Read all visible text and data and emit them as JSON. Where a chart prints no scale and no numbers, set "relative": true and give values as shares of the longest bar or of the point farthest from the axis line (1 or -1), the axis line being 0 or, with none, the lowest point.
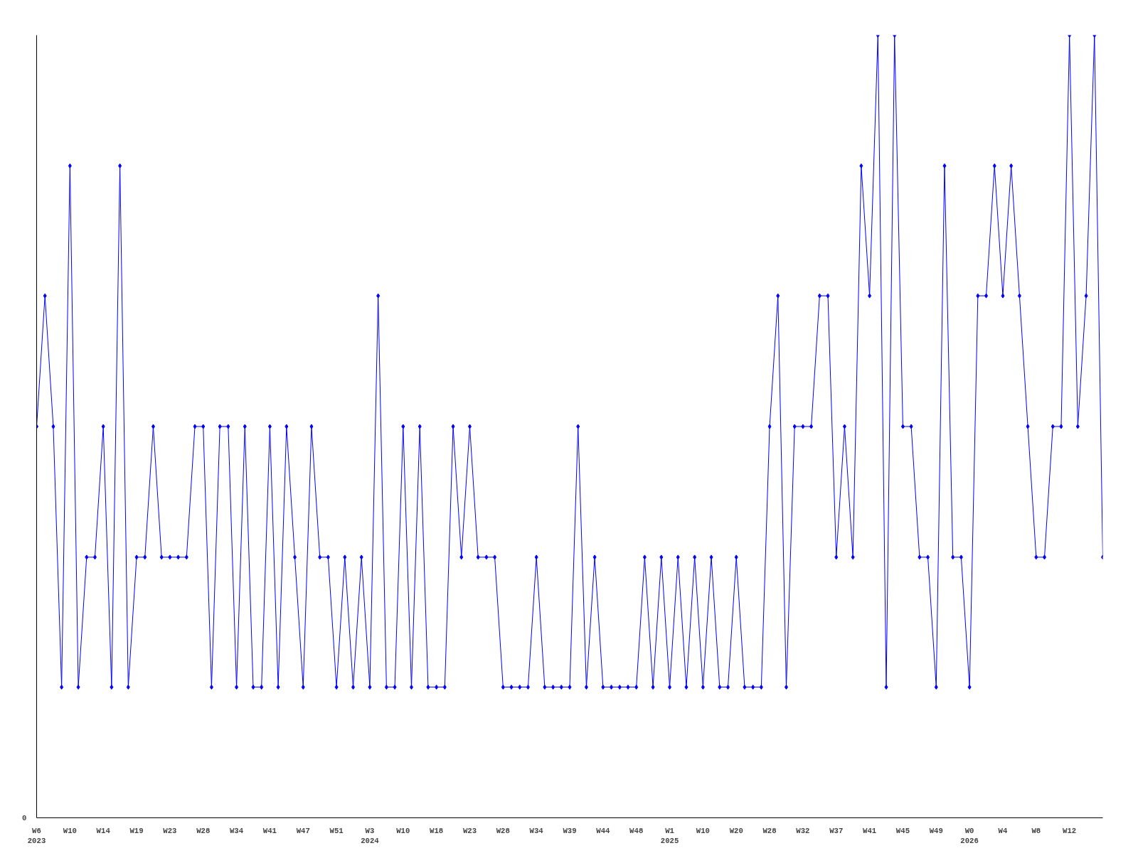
{
  "chart_data": {
    "type": "line",
    "relative": true,
    "annotations": [
      "0"
    ],
    "marker": "diamond",
    "line_style": "solid",
    "grid": false,
    "categories": [
      "W6\n2023",
      null,
      null,
      null,
      "W10",
      null,
      null,
      null,
      "W14",
      null,
      null,
      null,
      "W19",
      null,
      null,
      null,
      "W23",
      null,
      null,
      null,
      "W28",
      null,
      null,
      null,
      "W34",
      null,
      null,
      null,
      "W41",
      null,
      null,
      null,
      "W47",
      null,
      null,
      null,
      "W51",
      null,
      null,
      null,
      "W3\n2024",
      null,
      null,
      null,
      "W10",
      null,
      null,
      null,
      "W18",
      null,
      null,
      null,
      "W23",
      null,
      null,
      null,
      "W28",
      null,
      null,
      null,
      "W34",
      null,
      null,
      null,
      "W39",
      null,
      null,
      null,
      "W44",
      null,
      null,
      null,
      "W48",
      null,
      null,
      null,
      "W1\n2025",
      null,
      null,
      null,
      "W10",
      null,
      null,
      null,
      "W20",
      null,
      null,
      null,
      "W28",
      null,
      null,
      null,
      "W32",
      null,
      null,
      null,
      "W37",
      null,
      null,
      null,
      "W41",
      null,
      null,
      null,
      "W45",
      null,
      null,
      null,
      "W49",
      null,
      null,
      null,
      "W0\n2026",
      null,
      null,
      null,
      "W4",
      null,
      null,
      null,
      "W8",
      null,
      null,
      null,
      "W12",
      null,
      null,
      null,
      null
    ],
    "series": [
      {
        "color": "#0000ff",
        "values": [
          0.5,
          0.667,
          0.5,
          0.167,
          0.833,
          0.167,
          0.333,
          0.333,
          0.5,
          0.167,
          0.833,
          0.167,
          0.333,
          0.333,
          0.5,
          0.333,
          0.333,
          0.333,
          0.333,
          0.5,
          0.5,
          0.167,
          0.5,
          0.5,
          0.167,
          0.5,
          0.167,
          0.167,
          0.5,
          0.167,
          0.5,
          0.333,
          0.167,
          0.5,
          0.333,
          0.333,
          0.167,
          0.333,
          0.167,
          0.333,
          0.167,
          0.667,
          0.167,
          0.167,
          0.5,
          0.167,
          0.5,
          0.167,
          0.167,
          0.167,
          0.5,
          0.333,
          0.5,
          0.333,
          0.333,
          0.333,
          0.167,
          0.167,
          0.167,
          0.167,
          0.333,
          0.167,
          0.167,
          0.167,
          0.167,
          0.5,
          0.167,
          0.333,
          0.167,
          0.167,
          0.167,
          0.167,
          0.167,
          0.333,
          0.167,
          0.333,
          0.167,
          0.333,
          0.167,
          0.333,
          0.167,
          0.333,
          0.167,
          0.167,
          0.333,
          0.167,
          0.167,
          0.167,
          0.5,
          0.667,
          0.167,
          0.5,
          0.5,
          0.5,
          0.667,
          0.667,
          0.333,
          0.5,
          0.333,
          0.833,
          0.667,
          1,
          0.167,
          1,
          0.5,
          0.5,
          0.333,
          0.333,
          0.167,
          0.833,
          0.333,
          0.333,
          0.167,
          0.667,
          0.667,
          0.833,
          0.667,
          0.833,
          0.667,
          0.5,
          0.333,
          0.333,
          0.5,
          0.5,
          1,
          0.5,
          0.667,
          1,
          0.333
        ]
      }
    ]
  }
}
